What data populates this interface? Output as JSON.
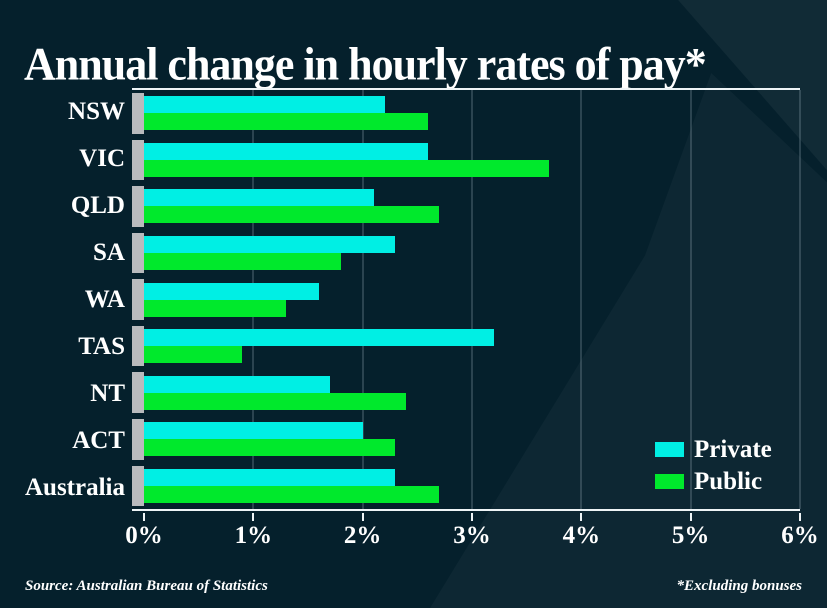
{
  "title": "Annual change in hourly rates of pay*",
  "footer": {
    "source": "Source: Australian Bureau of Statistics",
    "note": "*Excluding bonuses"
  },
  "legend": [
    {
      "label": "Private",
      "color": "#00efe4"
    },
    {
      "label": "Public",
      "color": "#00e92c"
    }
  ],
  "colors": {
    "background": "#05202c",
    "private_bar": "#00efe4",
    "public_bar": "#00e92c",
    "baseline_band": "#b9babd",
    "axis_line": "#eef4f6",
    "gridline": "rgba(175,195,205,0.45)",
    "text": "#ffffff"
  },
  "chart_data": {
    "type": "bar",
    "orientation": "horizontal",
    "title": "Annual change in hourly rates of pay*",
    "categories": [
      "NSW",
      "VIC",
      "QLD",
      "SA",
      "WA",
      "TAS",
      "NT",
      "ACT",
      "Australia"
    ],
    "series": [
      {
        "name": "Private",
        "color": "#00efe4",
        "values": [
          2.2,
          2.6,
          2.1,
          2.3,
          1.6,
          3.2,
          1.7,
          2.0,
          2.3
        ]
      },
      {
        "name": "Public",
        "color": "#00e92c",
        "values": [
          2.6,
          3.7,
          2.7,
          1.8,
          1.3,
          0.9,
          2.4,
          2.3,
          2.7
        ]
      }
    ],
    "xlabel": "",
    "ylabel": "",
    "xlim": [
      0,
      6
    ],
    "x_ticks": [
      "0%",
      "1%",
      "2%",
      "3%",
      "4%",
      "5%",
      "6%"
    ],
    "grid": true,
    "legend_position": "inside-bottom-right",
    "note": "*Excluding bonuses",
    "source": "Source: Australian Bureau of Statistics"
  }
}
